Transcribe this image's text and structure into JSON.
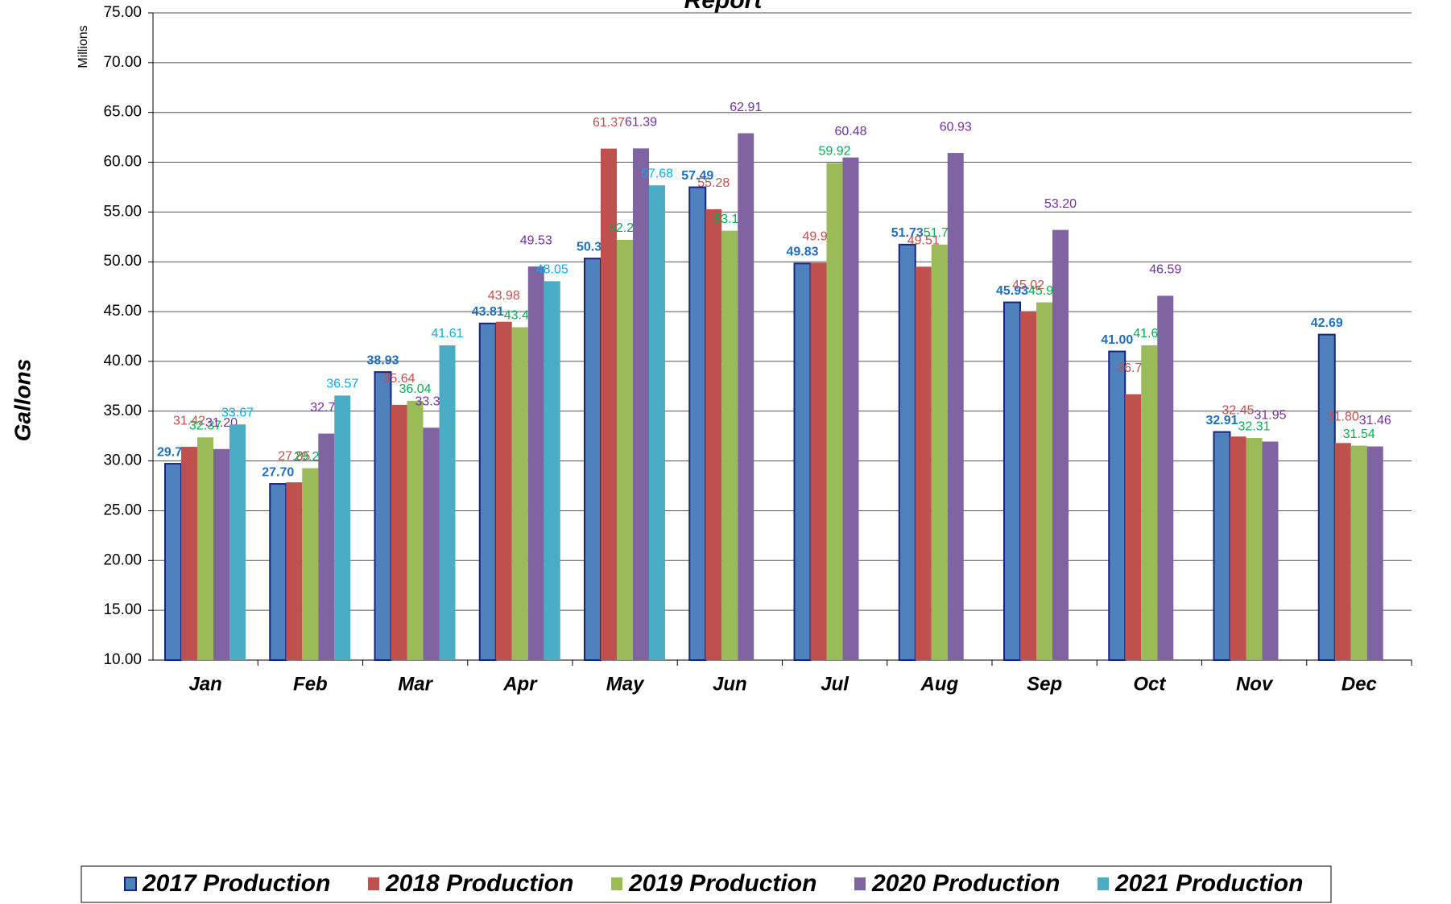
{
  "chart_data": {
    "type": "bar",
    "title": "Report",
    "y_axis_label": "Gallons",
    "y_units_label": "Millions",
    "categories": [
      "Jan",
      "Feb",
      "Mar",
      "Apr",
      "May",
      "Jun",
      "Jul",
      "Aug",
      "Sep",
      "Oct",
      "Nov",
      "Dec"
    ],
    "series": [
      {
        "name": "2017 Production",
        "color": "#4f81bd",
        "label_color": "#1f6fbf",
        "values": [
          29.72,
          27.7,
          38.93,
          43.81,
          50.33,
          57.49,
          49.83,
          51.73,
          45.93,
          41.0,
          32.91,
          42.69
        ],
        "value_labels": [
          "29.72",
          "27.70",
          "38.93",
          "43.81",
          "50.33",
          "57.49",
          "49.83",
          "51.73",
          "45.93",
          "41.00",
          "32.91",
          "42.69"
        ]
      },
      {
        "name": "2018 Production",
        "color": "#c0504d",
        "label_color": "#c0504d",
        "values": [
          31.42,
          27.85,
          35.64,
          43.98,
          61.37,
          55.28,
          49.91,
          49.51,
          45.02,
          36.7,
          32.45,
          31.8
        ],
        "value_labels": [
          "31.42",
          "27.85",
          "35.64",
          "43.98",
          "61.37",
          "55.28",
          "49.91",
          "49.51",
          "45.02",
          "36.70",
          "32.45",
          "31.80"
        ]
      },
      {
        "name": "2019 Production",
        "color": "#9bbb59",
        "label_color": "#00b050",
        "values": [
          32.37,
          29.27,
          36.04,
          43.43,
          52.21,
          53.12,
          59.92,
          51.73,
          45.93,
          41.61,
          32.31,
          31.54
        ],
        "value_labels": [
          "32.37",
          "29.27",
          "36.04",
          "43.43",
          "52.21",
          "53.12",
          "59.92",
          "51.73",
          "45.93",
          "41.61",
          "32.31",
          "31.54"
        ]
      },
      {
        "name": "2020 Production",
        "color": "#8064a2",
        "label_color": "#7030a0",
        "values": [
          31.2,
          32.75,
          33.34,
          49.53,
          61.39,
          62.91,
          60.48,
          60.93,
          53.2,
          46.59,
          31.95,
          31.46
        ],
        "value_labels": [
          "31.20",
          "32.75",
          "33.34",
          "49.53",
          "61.39",
          "62.91",
          "60.48",
          "60.93",
          "53.20",
          "46.59",
          "31.95",
          "31.46"
        ]
      },
      {
        "name": "2021 Production",
        "color": "#4bacc6",
        "label_color": "#00b0f0",
        "values": [
          33.67,
          36.57,
          41.61,
          48.05,
          57.68,
          null,
          null,
          null,
          null,
          null,
          null,
          null
        ],
        "value_labels": [
          "33.67",
          "36.57",
          "41.61",
          "48.05",
          "57.68",
          null,
          null,
          null,
          null,
          null,
          null,
          null
        ]
      }
    ],
    "ylim": [
      10,
      75
    ],
    "yticks": [
      {
        "value": 10,
        "label": "10.00"
      },
      {
        "value": 15,
        "label": "15.00"
      },
      {
        "value": 20,
        "label": "20.00"
      },
      {
        "value": 25,
        "label": "25.00"
      },
      {
        "value": 30,
        "label": "30.00"
      },
      {
        "value": 35,
        "label": "35.00"
      },
      {
        "value": 40,
        "label": "40.00"
      },
      {
        "value": 45,
        "label": "45.00"
      },
      {
        "value": 50,
        "label": "50.00"
      },
      {
        "value": 55,
        "label": "55.00"
      },
      {
        "value": 60,
        "label": "60.00"
      },
      {
        "value": 65,
        "label": "65.00"
      },
      {
        "value": 70,
        "label": "70.00"
      },
      {
        "value": 75,
        "label": "75.00"
      }
    ],
    "grid": true,
    "legend": "bottom"
  }
}
